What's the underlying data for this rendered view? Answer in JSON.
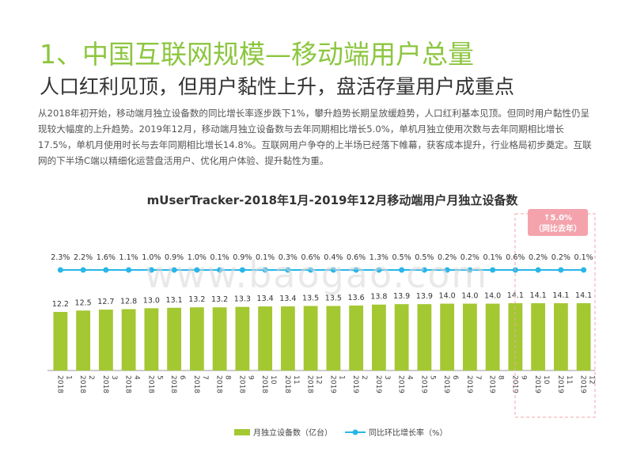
{
  "header": {
    "title": "1、中国互联网规模—移动端用户总量",
    "subtitle": "人口红利见顶，但用户黏性上升，盘活存量用户成重点",
    "description": "从2018年初开始，移动端月独立设备数的同比增长率逐步跌下1%，攀升趋势长期呈放缓趋势，人口红利基本见顶。但同时用户黏性仍呈现较大幅度的上升趋势。2019年12月，移动端月独立设备数与去年同期相比增长5.0%，单机月独立使用次数与去年同期相比增长17.5%，单机月使用时长与去年同期相比增长14.8%。互联网用户争夺的上半场已经落下帷幕，获客成本提升，行业格局初步奠定。互联网的下半场C端以精细化运营盘活用户、优化用户体验、提升黏性为重。"
  },
  "watermark": "www.baogao.com",
  "callout": {
    "line1": "↑5.0%",
    "line2": "（同比去年）"
  },
  "colors": {
    "bar": "#a4c832",
    "line": "#29b6e8",
    "title": "#8cc63f",
    "callout": "#f4a3ad"
  },
  "chart_data": {
    "type": "bar",
    "title": "mUserTracker-2018年1月-2019年12月移动端用户月独立设备数",
    "categories": [
      "20181",
      "20182",
      "20183",
      "20184",
      "20185",
      "20186",
      "20187",
      "20188",
      "20189",
      "201810",
      "201811",
      "201812",
      "20191",
      "20192",
      "20193",
      "20194",
      "20195",
      "20196",
      "20197",
      "20198",
      "20199",
      "201910",
      "201911",
      "201912"
    ],
    "tick_labels": [
      [
        "2018",
        "1"
      ],
      [
        "2018",
        "2"
      ],
      [
        "2018",
        "3"
      ],
      [
        "2018",
        "4"
      ],
      [
        "2018",
        "5"
      ],
      [
        "2018",
        "6"
      ],
      [
        "2018",
        "7"
      ],
      [
        "2018",
        "8"
      ],
      [
        "2018",
        "9"
      ],
      [
        "2018",
        "10"
      ],
      [
        "2018",
        "11"
      ],
      [
        "2018",
        "12"
      ],
      [
        "2019",
        "1"
      ],
      [
        "2019",
        "2"
      ],
      [
        "2019",
        "3"
      ],
      [
        "2019",
        "4"
      ],
      [
        "2019",
        "5"
      ],
      [
        "2019",
        "6"
      ],
      [
        "2019",
        "7"
      ],
      [
        "2019",
        "8"
      ],
      [
        "2019",
        "9"
      ],
      [
        "2019",
        "10"
      ],
      [
        "2019",
        "11"
      ],
      [
        "2019",
        "12"
      ]
    ],
    "series": [
      {
        "name": "月独立设备数（亿台）",
        "type": "bar",
        "values": [
          12.2,
          12.5,
          12.7,
          12.8,
          13.0,
          13.1,
          13.2,
          13.2,
          13.3,
          13.4,
          13.4,
          13.5,
          13.5,
          13.6,
          13.8,
          13.9,
          13.9,
          14.0,
          14.0,
          14.0,
          14.1,
          14.1,
          14.1,
          14.1
        ]
      },
      {
        "name": "同比增长率（%）",
        "type": "line",
        "labels": [
          "2.3%",
          "2.2%",
          "1.6%",
          "1.1%",
          "1.0%",
          "0.9%",
          "1.0%",
          "0.1%",
          "0.9%",
          "0.1%",
          "0.3%",
          "0.6%",
          "0.4%",
          "0.6%",
          "1.3%",
          "0.5%",
          "0.5%",
          "0.2%",
          "0.2%",
          "0.1%",
          "0.6%",
          "0.2%",
          "0.2%",
          "0.1%"
        ],
        "values": [
          2.3,
          2.2,
          1.6,
          1.1,
          1.0,
          0.9,
          1.0,
          0.1,
          0.9,
          0.1,
          0.3,
          0.6,
          0.4,
          0.6,
          1.3,
          0.5,
          0.5,
          0.2,
          0.2,
          0.1,
          0.6,
          0.2,
          0.2,
          0.1
        ]
      }
    ],
    "legend": [
      "月独立设备数（亿台）",
      "同比环比增长率（%）"
    ],
    "legend_position": "bottom",
    "grid": false
  }
}
